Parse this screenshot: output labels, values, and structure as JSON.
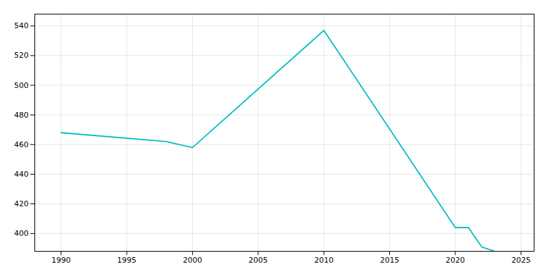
{
  "chart_data": {
    "type": "line",
    "x": [
      1990,
      1998,
      2000,
      2010,
      2020,
      2021,
      2022,
      2023
    ],
    "values": [
      468,
      462,
      458,
      537,
      404,
      404,
      391,
      388
    ],
    "color": "#00BFBF",
    "xlim": [
      1988,
      2026
    ],
    "xticks": [
      1990,
      1995,
      2000,
      2005,
      2010,
      2015,
      2020,
      2025
    ],
    "ylim": [
      388,
      548
    ],
    "yticks": [
      400,
      420,
      440,
      460,
      480,
      500,
      520,
      540
    ],
    "grid": true
  }
}
